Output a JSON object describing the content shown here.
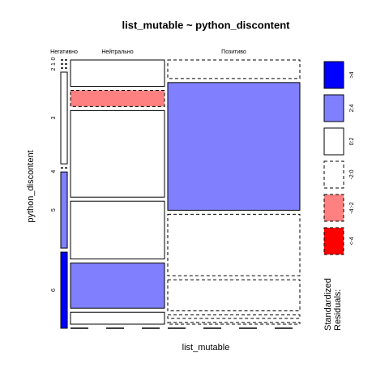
{
  "chart_data": {
    "type": "mosaic",
    "title": "list_mutable ~ python_discontent",
    "xlabel": "list_mutable",
    "ylabel": "python_discontent",
    "row_levels": [
      "0",
      "1",
      "2",
      "3",
      "4",
      "5",
      "6"
    ],
    "legend_title": [
      "Standardized",
      "Residuals:"
    ],
    "legend": [
      {
        "label": ">4",
        "color": "#0000ff",
        "dashed": false
      },
      {
        "label": "2:4",
        "color": "#8080ff",
        "dashed": false
      },
      {
        "label": "0:2",
        "color": "#ffffff",
        "dashed": false
      },
      {
        "label": "-2:0",
        "color": "#ffffff",
        "dashed": true
      },
      {
        "label": "-4:-2",
        "color": "#ff8080",
        "dashed": true
      },
      {
        "label": "<-4",
        "color": "#ff0000",
        "dashed": true
      }
    ],
    "columns": [
      {
        "name": "Негативно",
        "width": 2.8,
        "cells": [
          {
            "value": 0,
            "shade": "-2:0"
          },
          {
            "value": 0,
            "shade": "-2:0"
          },
          {
            "value": 0,
            "shade": "-2:0"
          },
          {
            "value": 37.6,
            "shade": "0:2"
          },
          {
            "value": 0,
            "shade": "-2:0"
          },
          {
            "value": 31.2,
            "shade": "2:4"
          },
          {
            "value": 31.2,
            "shade": ">4"
          }
        ]
      },
      {
        "name": "Нейтрально",
        "width": 40.4,
        "cells": [
          {
            "value": 10.8,
            "shade": "0:2"
          },
          {
            "value": 6.6,
            "shade": "-4:-2"
          },
          {
            "value": 35.5,
            "shade": "0:2"
          },
          {
            "value": 23.7,
            "shade": "0:2"
          },
          {
            "value": 18.5,
            "shade": "2:4"
          },
          {
            "value": 4.9,
            "shade": "0:2"
          },
          {
            "value": 0,
            "shade": "-2:0"
          }
        ]
      },
      {
        "name": "Позитиво",
        "width": 56.8,
        "cells": [
          {
            "value": 7.6,
            "shade": "-2:0"
          },
          {
            "value": 52.4,
            "shade": "2:4"
          },
          {
            "value": 25.2,
            "shade": "-2:0"
          },
          {
            "value": 12.8,
            "shade": "-2:0"
          },
          {
            "value": 1.4,
            "shade": "-2:0"
          },
          {
            "value": 0.7,
            "shade": "-2:0"
          },
          {
            "value": 0,
            "shade": "-2:0"
          }
        ]
      }
    ]
  }
}
